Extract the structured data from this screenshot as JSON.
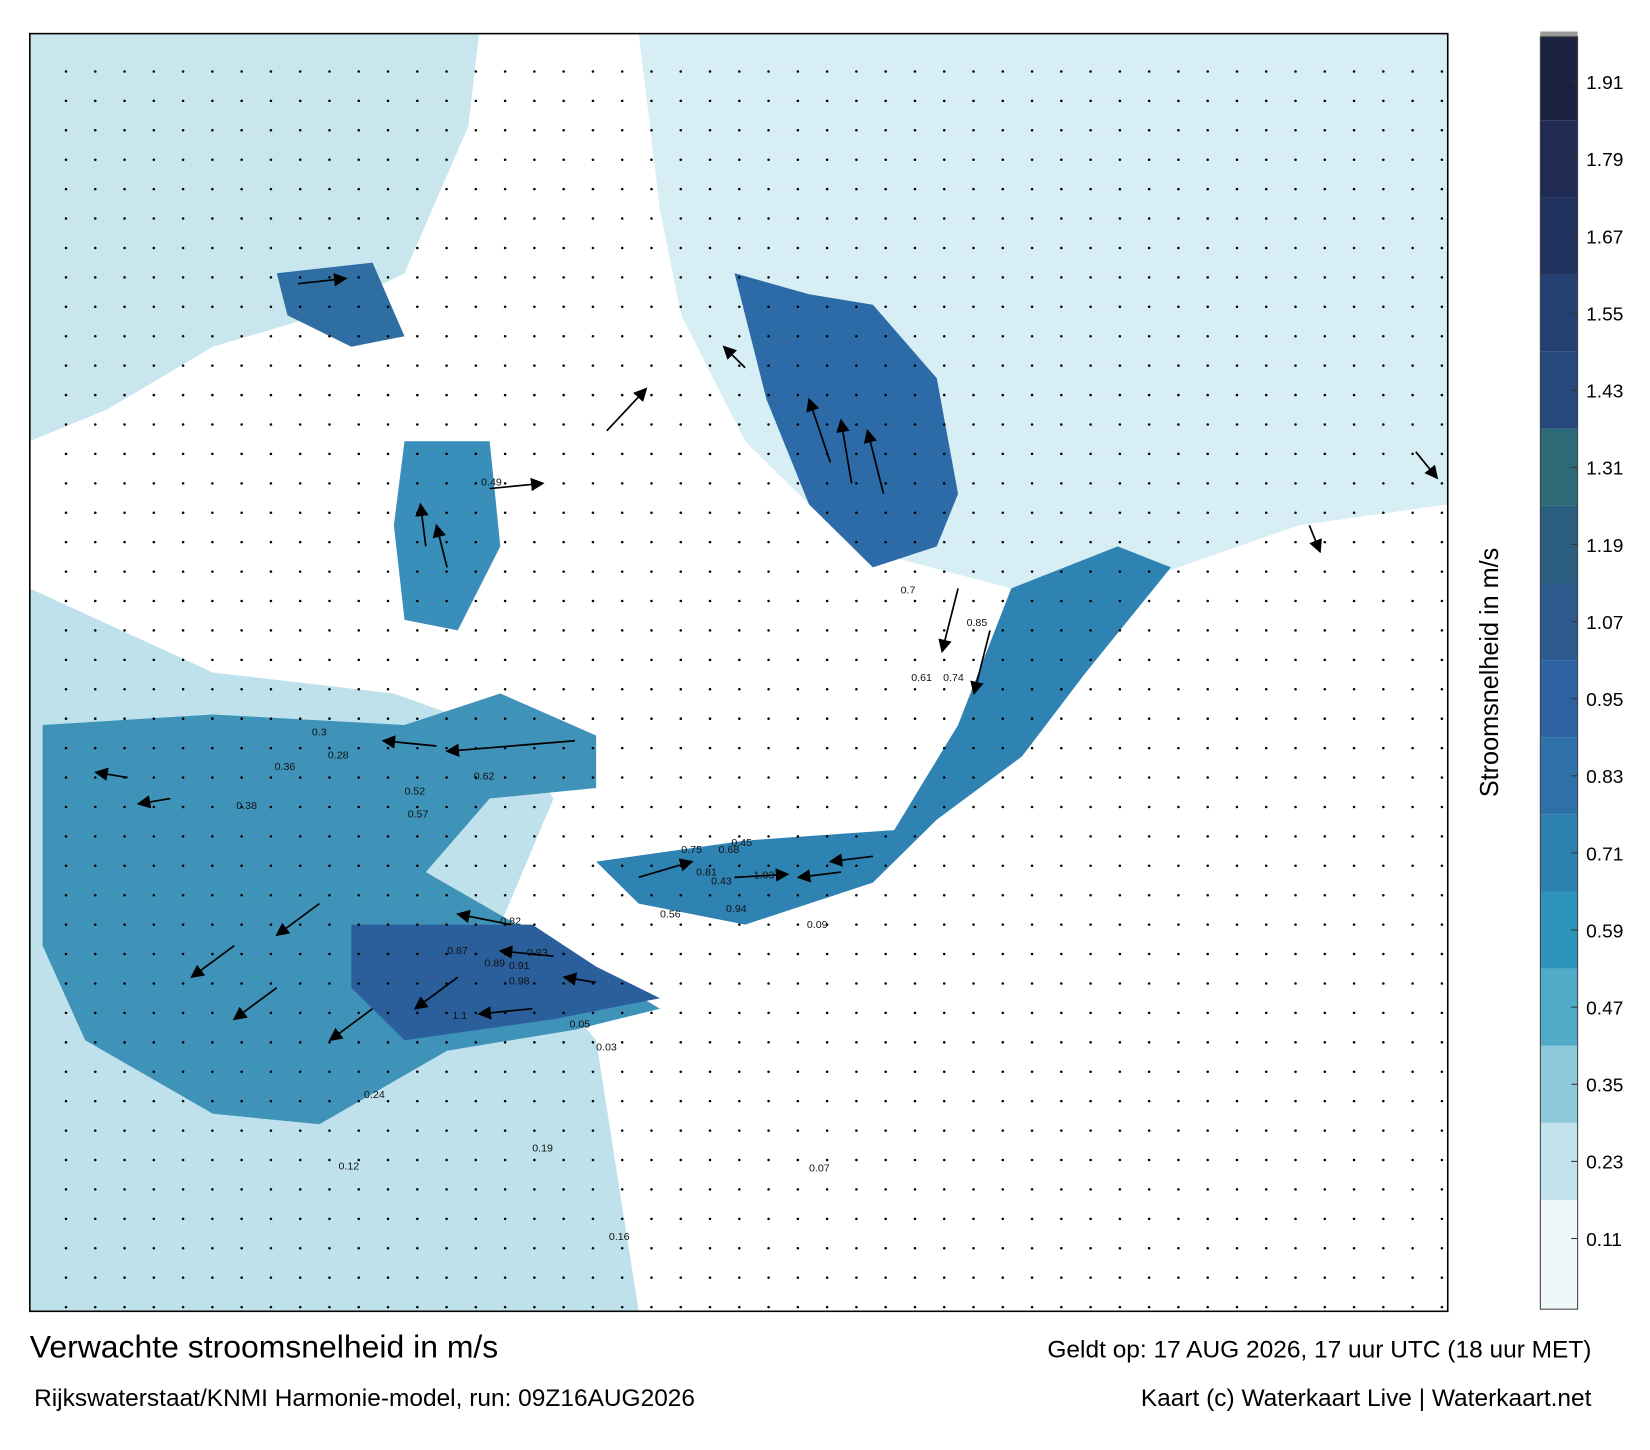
{
  "map": {
    "title": "Verwachte stroomsnelheid in m/s",
    "source": "Rijkswaterstaat/KNMI Harmonie-model, run: 09Z16AUG2026",
    "valid": "Geldt op: 17 AUG 2026, 17 uur UTC (18 uur MET)",
    "credit": "Kaart (c) Waterkaart Live | Waterkaart.net",
    "speed_labels": [
      "0.82",
      "0.83",
      "0.87",
      "0.89",
      "0.91",
      "0.98",
      "1.03",
      "1.1",
      "0.94",
      "0.75",
      "0.68",
      "0.81",
      "0.62",
      "0.56",
      "0.49",
      "0.52",
      "0.57",
      "0.45",
      "0.43",
      "0.38",
      "0.36",
      "0.3",
      "0.28",
      "0.24",
      "0.19",
      "0.16",
      "0.12",
      "0.09",
      "0.07",
      "0.05",
      "0.03",
      "0.61",
      "0.74",
      "0.85",
      "0.7"
    ],
    "colorbar": {
      "label": "Stroomsnelheid in m/s",
      "lim": [
        0,
        1.98
      ],
      "ticks": [
        0.11,
        0.23,
        0.35,
        0.47,
        0.59,
        0.71,
        0.83,
        0.95,
        1.07,
        1.19,
        1.31,
        1.43,
        1.55,
        1.67,
        1.79,
        1.91
      ],
      "colors": [
        "#eef7fa",
        "#c3e3ec",
        "#8ccadb",
        "#4fabc8",
        "#2f94ba",
        "#2b82b0",
        "#2d70aa",
        "#2c62a1",
        "#2d5a8c",
        "#2b5e7e",
        "#2c6a78",
        "#26487c",
        "#243f72",
        "#22325f",
        "#1f2b52",
        "#1b2140"
      ]
    }
  }
}
